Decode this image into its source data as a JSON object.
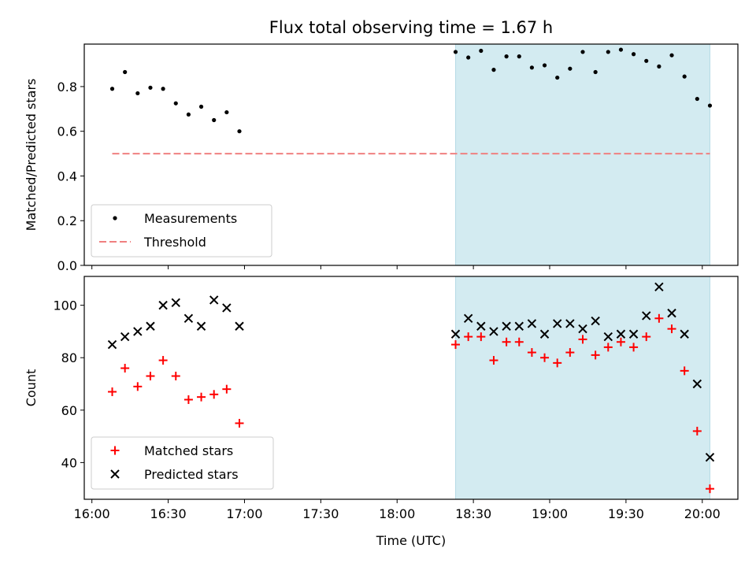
{
  "figure": {
    "title": "Flux total observing time = 1.67 h"
  },
  "chart_data": [
    {
      "type": "scatter",
      "xlabel": "",
      "ylabel": "Matched/Predicted stars",
      "xlim": [
        "15:57",
        "20:14"
      ],
      "ylim": [
        0,
        0.99
      ],
      "y_ticks": [
        0.0,
        0.2,
        0.4,
        0.6,
        0.8
      ],
      "shaded_region": {
        "x": [
          "18:23",
          "20:03"
        ],
        "color": "#d3ebf1"
      },
      "legend": {
        "placement": "lower-left",
        "entries": [
          "Measurements",
          "Threshold"
        ]
      },
      "series": [
        {
          "name": "Measurements",
          "marker": "dot",
          "color": "#000000",
          "x": [
            "16:08",
            "16:13",
            "16:18",
            "16:23",
            "16:28",
            "16:33",
            "16:38",
            "16:43",
            "16:48",
            "16:53",
            "16:58",
            "18:23",
            "18:28",
            "18:33",
            "18:38",
            "18:43",
            "18:48",
            "18:53",
            "18:58",
            "19:03",
            "19:08",
            "19:13",
            "19:18",
            "19:23",
            "19:28",
            "19:33",
            "19:38",
            "19:43",
            "19:48",
            "19:53",
            "19:58",
            "20:03"
          ],
          "y": [
            0.79,
            0.865,
            0.77,
            0.795,
            0.79,
            0.725,
            0.675,
            0.71,
            0.65,
            0.685,
            0.6,
            0.955,
            0.93,
            0.96,
            0.875,
            0.935,
            0.935,
            0.885,
            0.895,
            0.84,
            0.88,
            0.955,
            0.865,
            0.955,
            0.965,
            0.945,
            0.915,
            0.89,
            0.94,
            0.845,
            0.745,
            0.715
          ]
        },
        {
          "name": "Threshold",
          "style": "dashed",
          "color": "#f08080",
          "x": [
            "16:08",
            "20:03"
          ],
          "y": [
            0.5,
            0.5
          ]
        }
      ]
    },
    {
      "type": "scatter",
      "xlabel": "Time (UTC)",
      "ylabel": "Count",
      "xlim": [
        "15:57",
        "20:14"
      ],
      "ylim": [
        26,
        111
      ],
      "x_ticks": [
        "16:00",
        "16:30",
        "17:00",
        "17:30",
        "18:00",
        "18:30",
        "19:00",
        "19:30",
        "20:00"
      ],
      "y_ticks": [
        40,
        60,
        80,
        100
      ],
      "shaded_region": {
        "x": [
          "18:23",
          "20:03"
        ],
        "color": "#d3ebf1"
      },
      "legend": {
        "placement": "lower-left",
        "entries": [
          "Matched stars",
          "Predicted stars"
        ]
      },
      "series": [
        {
          "name": "Matched stars",
          "marker": "plus",
          "color": "#ff0000",
          "x": [
            "16:08",
            "16:13",
            "16:18",
            "16:23",
            "16:28",
            "16:33",
            "16:38",
            "16:43",
            "16:48",
            "16:53",
            "16:58",
            "18:23",
            "18:28",
            "18:33",
            "18:38",
            "18:43",
            "18:48",
            "18:53",
            "18:58",
            "19:03",
            "19:08",
            "19:13",
            "19:18",
            "19:23",
            "19:28",
            "19:33",
            "19:38",
            "19:43",
            "19:48",
            "19:53",
            "19:58",
            "20:03"
          ],
          "y": [
            67,
            76,
            69,
            73,
            79,
            73,
            64,
            65,
            66,
            68,
            55,
            85,
            88,
            88,
            79,
            86,
            86,
            82,
            80,
            78,
            82,
            87,
            81,
            84,
            86,
            84,
            88,
            95,
            91,
            75,
            52,
            30
          ]
        },
        {
          "name": "Predicted stars",
          "marker": "x",
          "color": "#000000",
          "x": [
            "16:08",
            "16:13",
            "16:18",
            "16:23",
            "16:28",
            "16:33",
            "16:38",
            "16:43",
            "16:48",
            "16:53",
            "16:58",
            "18:23",
            "18:28",
            "18:33",
            "18:38",
            "18:43",
            "18:48",
            "18:53",
            "18:58",
            "19:03",
            "19:08",
            "19:13",
            "19:18",
            "19:23",
            "19:28",
            "19:33",
            "19:38",
            "19:43",
            "19:48",
            "19:53",
            "19:58",
            "20:03"
          ],
          "y": [
            85,
            88,
            90,
            92,
            100,
            101,
            95,
            92,
            102,
            99,
            92,
            89,
            95,
            92,
            90,
            92,
            92,
            93,
            89,
            93,
            93,
            91,
            94,
            88,
            89,
            89,
            96,
            107,
            97,
            89,
            70,
            42
          ]
        }
      ]
    }
  ]
}
